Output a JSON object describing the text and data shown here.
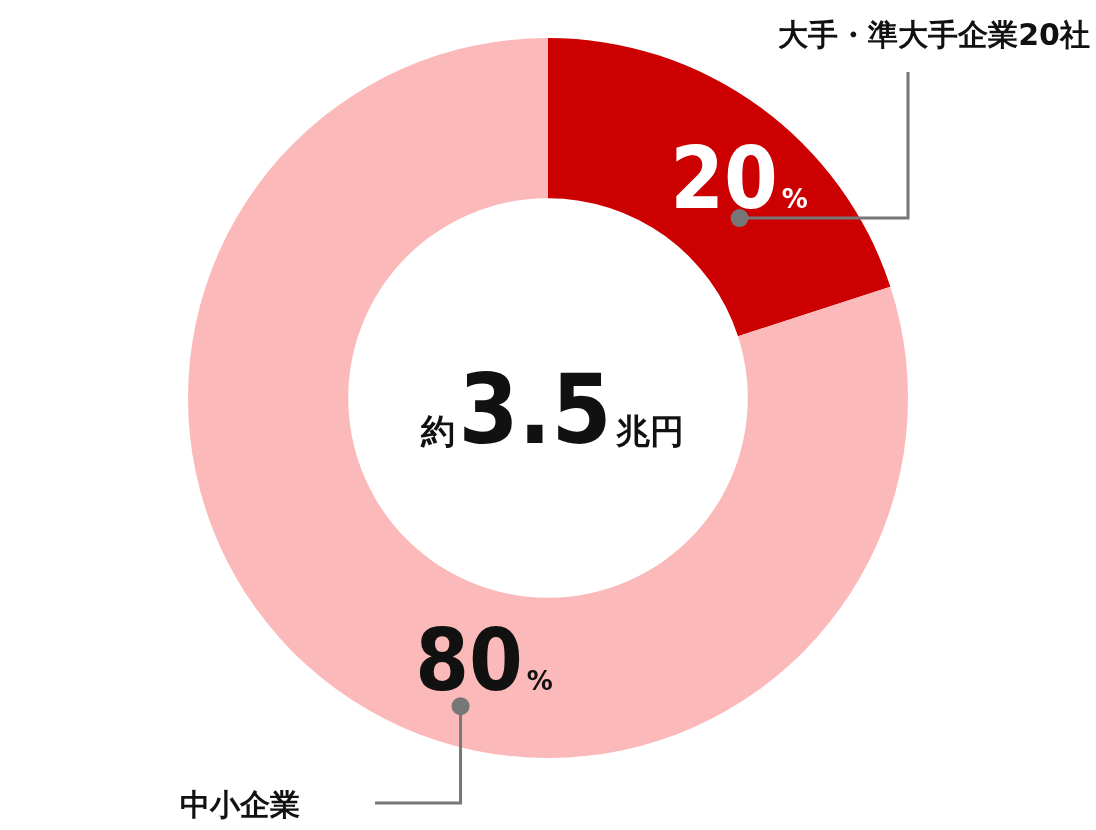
{
  "chart_data": {
    "type": "donut",
    "categories": [
      "大手・準大手企業20社",
      "中小企業"
    ],
    "values": [
      20,
      80
    ],
    "colors": [
      "#cc0000",
      "#fbb9b9"
    ],
    "value_labels": [
      "20%",
      "80%"
    ],
    "annotations": [
      "約3.5兆円"
    ]
  }
}
